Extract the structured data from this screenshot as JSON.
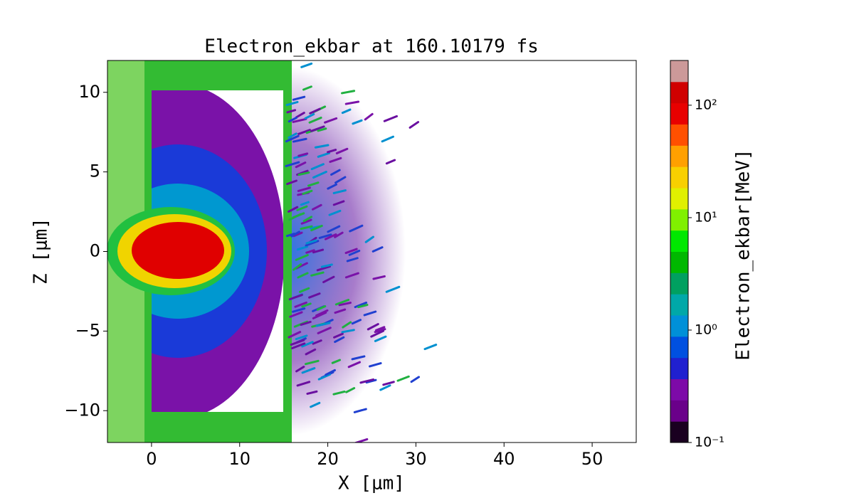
{
  "chart_data": {
    "type": "contour",
    "title": "Electron_ekbar at 160.10179 fs",
    "x_label": "X [μm]",
    "y_label": "Z [μm]",
    "xlim": [
      -5,
      55
    ],
    "xticks": [
      0,
      10,
      20,
      30,
      40,
      50
    ],
    "ylim": [
      -12,
      12
    ],
    "yticks": [
      {
        "value": -10,
        "label": "−10"
      },
      {
        "value": -5,
        "label": "−5"
      },
      0,
      5,
      10
    ],
    "colorbar": {
      "label": "Electron_ekbar[MeV]",
      "log_scale": true,
      "clim": [
        0.1,
        250
      ],
      "cticks": [
        {
          "value": 0.1,
          "label": "10⁻¹"
        },
        {
          "value": 1,
          "label": "10⁰"
        },
        {
          "value": 10,
          "label": "10¹"
        },
        {
          "value": 100,
          "label": "10²"
        }
      ],
      "colormap": [
        "#1a0020",
        "#6a008a",
        "#7d0aa8",
        "#2020d0",
        "#0050e0",
        "#0090d8",
        "#00a8a8",
        "#00a060",
        "#00b800",
        "#00e800",
        "#80f000",
        "#e0f000",
        "#f8d000",
        "#ffa000",
        "#ff5000",
        "#e80000",
        "#d00000",
        "#cc9999"
      ]
    }
  }
}
